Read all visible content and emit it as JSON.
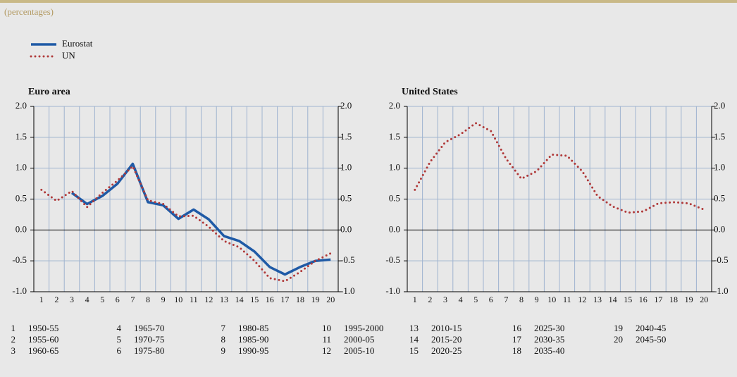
{
  "subtitle": "(percentages)",
  "period_key": [
    {
      "number": 1,
      "period": "1950-55"
    },
    {
      "number": 2,
      "period": "1955-60"
    },
    {
      "number": 3,
      "period": "1960-65"
    },
    {
      "number": 4,
      "period": "1965-70"
    },
    {
      "number": 5,
      "period": "1970-75"
    },
    {
      "number": 6,
      "period": "1975-80"
    },
    {
      "number": 7,
      "period": "1980-85"
    },
    {
      "number": 8,
      "period": "1985-90"
    },
    {
      "number": 9,
      "period": "1990-95"
    },
    {
      "number": 10,
      "period": "1995-2000"
    },
    {
      "number": 11,
      "period": "2000-05"
    },
    {
      "number": 12,
      "period": "2005-10"
    },
    {
      "number": 13,
      "period": "2010-15"
    },
    {
      "number": 14,
      "period": "2015-20"
    },
    {
      "number": 15,
      "period": "2020-25"
    },
    {
      "number": 16,
      "period": "2025-30"
    },
    {
      "number": 17,
      "period": "2030-35"
    },
    {
      "number": 18,
      "period": "2035-40"
    },
    {
      "number": 19,
      "period": "2040-45"
    },
    {
      "number": 20,
      "period": "2045-50"
    }
  ],
  "chart_data": [
    {
      "type": "line",
      "title": "Euro area",
      "categories": [
        1,
        2,
        3,
        4,
        5,
        6,
        7,
        8,
        9,
        10,
        11,
        12,
        13,
        14,
        15,
        16,
        17,
        18,
        19,
        20
      ],
      "series": [
        {
          "name": "Eurostat",
          "color": "#1f5aa6",
          "style": "solid",
          "values": [
            null,
            null,
            0.6,
            0.42,
            0.55,
            0.75,
            1.07,
            0.45,
            0.4,
            0.18,
            0.33,
            0.17,
            -0.1,
            -0.18,
            -0.35,
            -0.6,
            -0.72,
            -0.6,
            -0.5,
            -0.48
          ]
        },
        {
          "name": "UN",
          "color": "#b03a3a",
          "style": "dotted",
          "values": [
            0.65,
            0.47,
            0.63,
            0.37,
            0.6,
            0.8,
            1.03,
            0.48,
            0.42,
            0.22,
            0.23,
            0.05,
            -0.18,
            -0.28,
            -0.5,
            -0.78,
            -0.83,
            -0.68,
            -0.5,
            -0.38
          ]
        }
      ],
      "ylim": [
        -1,
        2
      ],
      "yticks": [
        {
          "value": -1,
          "label": "-1.0"
        },
        -0.5,
        {
          "value": 0,
          "label": "0.0"
        },
        0.5,
        {
          "value": 1,
          "label": "1.0"
        },
        1.5,
        {
          "value": 2,
          "label": "2.0"
        }
      ],
      "y2lim": [
        -1,
        2
      ],
      "y2ticks": [
        {
          "value": -1,
          "label": "-1.0"
        },
        -0.5,
        {
          "value": 0,
          "label": "0.0"
        },
        0.5,
        {
          "value": 1,
          "label": "1.0"
        },
        1.5,
        {
          "value": 2,
          "label": "2.0"
        }
      ],
      "grid": true
    },
    {
      "type": "line",
      "title": "United States",
      "categories": [
        1,
        2,
        3,
        4,
        5,
        6,
        7,
        8,
        9,
        10,
        11,
        12,
        13,
        14,
        15,
        16,
        17,
        18,
        19,
        20
      ],
      "series": [
        {
          "name": "UN",
          "color": "#b03a3a",
          "style": "dotted",
          "values": [
            0.65,
            1.1,
            1.42,
            1.55,
            1.73,
            1.6,
            1.15,
            0.83,
            0.95,
            1.22,
            1.2,
            0.95,
            0.55,
            0.38,
            0.28,
            0.3,
            0.43,
            0.45,
            0.43,
            0.33
          ]
        }
      ],
      "ylim": [
        -1,
        2
      ],
      "yticks": [
        {
          "value": -1,
          "label": "-1.0"
        },
        -0.5,
        {
          "value": 0,
          "label": "0.0"
        },
        0.5,
        {
          "value": 1,
          "label": "1.0"
        },
        1.5,
        {
          "value": 2,
          "label": "2.0"
        }
      ],
      "y2lim": [
        -1,
        2
      ],
      "y2ticks": [
        {
          "value": -1,
          "label": "-1.0"
        },
        -0.5,
        {
          "value": 0,
          "label": "0.0"
        },
        0.5,
        {
          "value": 1,
          "label": "1.0"
        },
        1.5,
        {
          "value": 2,
          "label": "2.0"
        }
      ],
      "grid": true
    }
  ]
}
